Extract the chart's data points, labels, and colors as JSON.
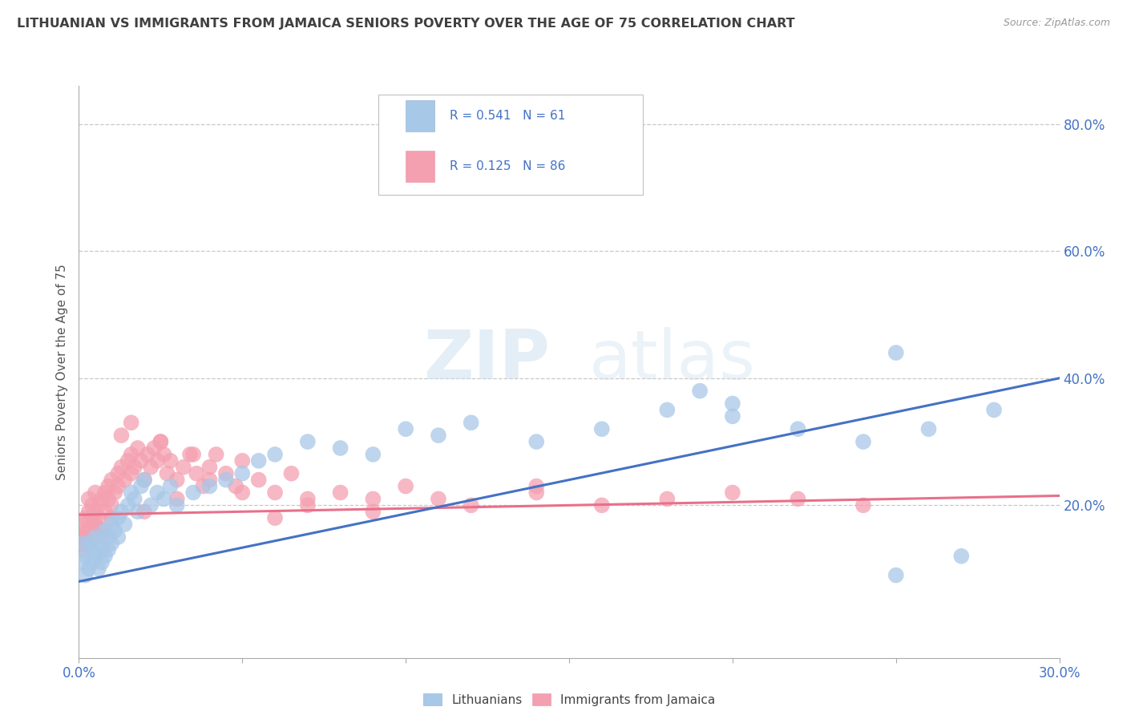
{
  "title": "LITHUANIAN VS IMMIGRANTS FROM JAMAICA SENIORS POVERTY OVER THE AGE OF 75 CORRELATION CHART",
  "source": "Source: ZipAtlas.com",
  "ylabel": "Seniors Poverty Over the Age of 75",
  "xlim": [
    0.0,
    0.3
  ],
  "ylim": [
    -0.04,
    0.86
  ],
  "xticks": [
    0.0,
    0.05,
    0.1,
    0.15,
    0.2,
    0.25,
    0.3
  ],
  "xtick_labels": [
    "0.0%",
    "",
    "",
    "",
    "",
    "",
    "30.0%"
  ],
  "ytick_vals": [
    0.8,
    0.6,
    0.4,
    0.2
  ],
  "ytick_labels": [
    "80.0%",
    "60.0%",
    "40.0%",
    "20.0%"
  ],
  "watermark_zip": "ZIP",
  "watermark_atlas": "atlas",
  "legend_text1": "R = 0.541   N = 61",
  "legend_text2": "R = 0.125   N = 86",
  "blue_scatter_color": "#a8c8e8",
  "pink_scatter_color": "#f4a0b0",
  "blue_line_color": "#4472c4",
  "pink_line_color": "#e8708a",
  "legend_text_color": "#4472c4",
  "axis_tick_color": "#4472c4",
  "title_color": "#404040",
  "grid_color": "#c8c8c8",
  "background_color": "#ffffff",
  "series1_label": "Lithuanians",
  "series2_label": "Immigrants from Jamaica",
  "blue_line_x": [
    0.0,
    0.3
  ],
  "blue_line_y": [
    0.08,
    0.4
  ],
  "pink_line_x": [
    0.0,
    0.3
  ],
  "pink_line_y": [
    0.185,
    0.215
  ],
  "blue_scatter_x": [
    0.001,
    0.001,
    0.002,
    0.002,
    0.003,
    0.003,
    0.004,
    0.004,
    0.005,
    0.005,
    0.006,
    0.006,
    0.007,
    0.007,
    0.008,
    0.008,
    0.009,
    0.009,
    0.01,
    0.01,
    0.011,
    0.012,
    0.012,
    0.013,
    0.014,
    0.015,
    0.016,
    0.017,
    0.018,
    0.019,
    0.02,
    0.022,
    0.024,
    0.026,
    0.028,
    0.03,
    0.035,
    0.04,
    0.045,
    0.05,
    0.055,
    0.06,
    0.07,
    0.08,
    0.09,
    0.1,
    0.11,
    0.12,
    0.14,
    0.16,
    0.18,
    0.2,
    0.22,
    0.24,
    0.26,
    0.28,
    0.25,
    0.19,
    0.2,
    0.27,
    0.25
  ],
  "blue_scatter_y": [
    0.14,
    0.11,
    0.12,
    0.09,
    0.14,
    0.1,
    0.13,
    0.11,
    0.15,
    0.12,
    0.14,
    0.1,
    0.13,
    0.11,
    0.16,
    0.12,
    0.15,
    0.13,
    0.17,
    0.14,
    0.16,
    0.18,
    0.15,
    0.19,
    0.17,
    0.2,
    0.22,
    0.21,
    0.19,
    0.23,
    0.24,
    0.2,
    0.22,
    0.21,
    0.23,
    0.2,
    0.22,
    0.23,
    0.24,
    0.25,
    0.27,
    0.28,
    0.3,
    0.29,
    0.28,
    0.32,
    0.31,
    0.33,
    0.3,
    0.32,
    0.35,
    0.34,
    0.32,
    0.3,
    0.32,
    0.35,
    0.44,
    0.38,
    0.36,
    0.12,
    0.09
  ],
  "pink_scatter_x": [
    0.001,
    0.001,
    0.002,
    0.002,
    0.003,
    0.003,
    0.003,
    0.004,
    0.004,
    0.005,
    0.005,
    0.005,
    0.006,
    0.006,
    0.007,
    0.007,
    0.008,
    0.008,
    0.009,
    0.009,
    0.01,
    0.01,
    0.011,
    0.012,
    0.012,
    0.013,
    0.014,
    0.015,
    0.016,
    0.016,
    0.017,
    0.018,
    0.019,
    0.02,
    0.021,
    0.022,
    0.023,
    0.024,
    0.025,
    0.026,
    0.027,
    0.028,
    0.03,
    0.032,
    0.034,
    0.036,
    0.038,
    0.04,
    0.042,
    0.045,
    0.048,
    0.05,
    0.055,
    0.06,
    0.065,
    0.07,
    0.08,
    0.09,
    0.1,
    0.12,
    0.14,
    0.16,
    0.18,
    0.2,
    0.22,
    0.24,
    0.0,
    0.001,
    0.002,
    0.003,
    0.005,
    0.007,
    0.01,
    0.013,
    0.016,
    0.02,
    0.025,
    0.03,
    0.035,
    0.04,
    0.05,
    0.06,
    0.07,
    0.09,
    0.11,
    0.14
  ],
  "pink_scatter_y": [
    0.17,
    0.14,
    0.18,
    0.15,
    0.19,
    0.16,
    0.21,
    0.18,
    0.2,
    0.17,
    0.19,
    0.22,
    0.18,
    0.2,
    0.21,
    0.16,
    0.22,
    0.19,
    0.21,
    0.23,
    0.2,
    0.24,
    0.22,
    0.25,
    0.23,
    0.26,
    0.24,
    0.27,
    0.25,
    0.28,
    0.26,
    0.29,
    0.27,
    0.24,
    0.28,
    0.26,
    0.29,
    0.27,
    0.3,
    0.28,
    0.25,
    0.27,
    0.24,
    0.26,
    0.28,
    0.25,
    0.23,
    0.26,
    0.28,
    0.25,
    0.23,
    0.27,
    0.24,
    0.22,
    0.25,
    0.2,
    0.22,
    0.21,
    0.23,
    0.2,
    0.22,
    0.2,
    0.21,
    0.22,
    0.21,
    0.2,
    0.15,
    0.13,
    0.16,
    0.14,
    0.17,
    0.15,
    0.18,
    0.31,
    0.33,
    0.19,
    0.3,
    0.21,
    0.28,
    0.24,
    0.22,
    0.18,
    0.21,
    0.19,
    0.21,
    0.23
  ]
}
